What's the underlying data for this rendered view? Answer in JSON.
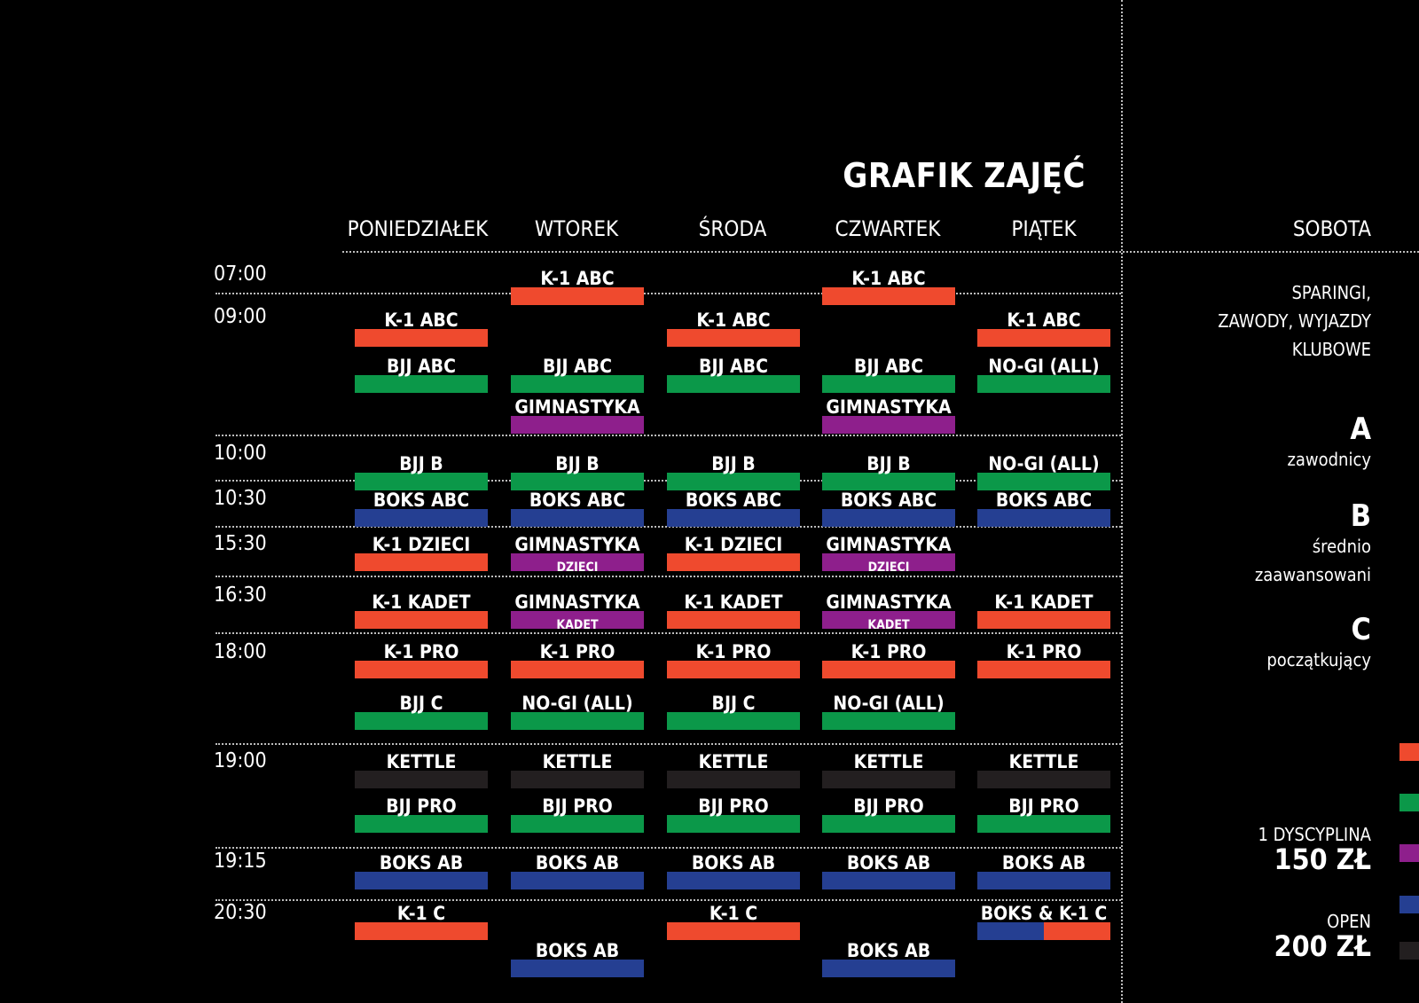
{
  "title": "GRAFIK ZAJĘĆ",
  "days": [
    "PONIEDZIAŁEK",
    "WTOREK",
    "ŚRODA",
    "CZWARTEK",
    "PIĄTEK"
  ],
  "saturday": {
    "label": "SOBOTA",
    "text_lines": [
      "SPARINGI,",
      "ZAWODY, WYJAZDY",
      "KLUBOWE"
    ]
  },
  "times": [
    "07:00",
    "09:00",
    "10:00",
    "10:30",
    "15:30",
    "16:30",
    "18:00",
    "19:00",
    "19:15",
    "20:30"
  ],
  "colors": {
    "k1": "#ef4a2e",
    "bjj": "#0b9849",
    "gym": "#8e1f8c",
    "boks": "#253f92",
    "kettle": "#231f20"
  },
  "schedule": [
    {
      "day": 1,
      "slot": 0,
      "label": "K-1 ABC",
      "color": "k1"
    },
    {
      "day": 3,
      "slot": 0,
      "label": "K-1 ABC",
      "color": "k1"
    },
    {
      "day": 0,
      "slot": 1,
      "label": "K-1 ABC",
      "color": "k1"
    },
    {
      "day": 2,
      "slot": 1,
      "label": "K-1 ABC",
      "color": "k1"
    },
    {
      "day": 4,
      "slot": 1,
      "label": "K-1 ABC",
      "color": "k1"
    },
    {
      "day": 0,
      "slot": 2,
      "label": "BJJ ABC",
      "color": "bjj"
    },
    {
      "day": 1,
      "slot": 2,
      "label": "BJJ ABC",
      "color": "bjj"
    },
    {
      "day": 2,
      "slot": 2,
      "label": "BJJ ABC",
      "color": "bjj"
    },
    {
      "day": 3,
      "slot": 2,
      "label": "BJJ ABC",
      "color": "bjj"
    },
    {
      "day": 4,
      "slot": 2,
      "label": "NO-GI (ALL)",
      "color": "bjj"
    },
    {
      "day": 1,
      "slot": 3,
      "label": "GIMNASTYKA",
      "color": "gym"
    },
    {
      "day": 3,
      "slot": 3,
      "label": "GIMNASTYKA",
      "color": "gym"
    },
    {
      "day": 0,
      "slot": 4,
      "label": "BJJ B",
      "color": "bjj"
    },
    {
      "day": 1,
      "slot": 4,
      "label": "BJJ B",
      "color": "bjj"
    },
    {
      "day": 2,
      "slot": 4,
      "label": "BJJ B",
      "color": "bjj"
    },
    {
      "day": 3,
      "slot": 4,
      "label": "BJJ B",
      "color": "bjj"
    },
    {
      "day": 4,
      "slot": 4,
      "label": "NO-GI (ALL)",
      "color": "bjj"
    },
    {
      "day": 0,
      "slot": 5,
      "label": "BOKS ABC",
      "color": "boks"
    },
    {
      "day": 1,
      "slot": 5,
      "label": "BOKS ABC",
      "color": "boks"
    },
    {
      "day": 2,
      "slot": 5,
      "label": "BOKS ABC",
      "color": "boks"
    },
    {
      "day": 3,
      "slot": 5,
      "label": "BOKS ABC",
      "color": "boks"
    },
    {
      "day": 4,
      "slot": 5,
      "label": "BOKS ABC",
      "color": "boks"
    },
    {
      "day": 0,
      "slot": 6,
      "label": "K-1 DZIECI",
      "color": "k1"
    },
    {
      "day": 1,
      "slot": 6,
      "label": "GIMNASTYKA",
      "sub": "DZIECI",
      "color": "gym"
    },
    {
      "day": 2,
      "slot": 6,
      "label": "K-1 DZIECI",
      "color": "k1"
    },
    {
      "day": 3,
      "slot": 6,
      "label": "GIMNASTYKA",
      "sub": "DZIECI",
      "color": "gym"
    },
    {
      "day": 0,
      "slot": 7,
      "label": "K-1 KADET",
      "color": "k1"
    },
    {
      "day": 1,
      "slot": 7,
      "label": "GIMNASTYKA",
      "sub": "KADET",
      "color": "gym"
    },
    {
      "day": 2,
      "slot": 7,
      "label": "K-1 KADET",
      "color": "k1"
    },
    {
      "day": 3,
      "slot": 7,
      "label": "GIMNASTYKA",
      "sub": "KADET",
      "color": "gym"
    },
    {
      "day": 4,
      "slot": 7,
      "label": "K-1 KADET",
      "color": "k1"
    },
    {
      "day": 0,
      "slot": 8,
      "label": "K-1 PRO",
      "color": "k1"
    },
    {
      "day": 1,
      "slot": 8,
      "label": "K-1 PRO",
      "color": "k1"
    },
    {
      "day": 2,
      "slot": 8,
      "label": "K-1 PRO",
      "color": "k1"
    },
    {
      "day": 3,
      "slot": 8,
      "label": "K-1 PRO",
      "color": "k1"
    },
    {
      "day": 4,
      "slot": 8,
      "label": "K-1 PRO",
      "color": "k1"
    },
    {
      "day": 0,
      "slot": 9,
      "label": "BJJ C",
      "color": "bjj"
    },
    {
      "day": 1,
      "slot": 9,
      "label": "NO-GI (ALL)",
      "color": "bjj"
    },
    {
      "day": 2,
      "slot": 9,
      "label": "BJJ C",
      "color": "bjj"
    },
    {
      "day": 3,
      "slot": 9,
      "label": "NO-GI (ALL)",
      "color": "bjj"
    },
    {
      "day": 0,
      "slot": 10,
      "label": "KETTLE",
      "color": "kettle"
    },
    {
      "day": 1,
      "slot": 10,
      "label": "KETTLE",
      "color": "kettle"
    },
    {
      "day": 2,
      "slot": 10,
      "label": "KETTLE",
      "color": "kettle"
    },
    {
      "day": 3,
      "slot": 10,
      "label": "KETTLE",
      "color": "kettle"
    },
    {
      "day": 4,
      "slot": 10,
      "label": "KETTLE",
      "color": "kettle"
    },
    {
      "day": 0,
      "slot": 11,
      "label": "BJJ PRO",
      "color": "bjj"
    },
    {
      "day": 1,
      "slot": 11,
      "label": "BJJ PRO",
      "color": "bjj"
    },
    {
      "day": 2,
      "slot": 11,
      "label": "BJJ PRO",
      "color": "bjj"
    },
    {
      "day": 3,
      "slot": 11,
      "label": "BJJ PRO",
      "color": "bjj"
    },
    {
      "day": 4,
      "slot": 11,
      "label": "BJJ PRO",
      "color": "bjj"
    },
    {
      "day": 0,
      "slot": 12,
      "label": "BOKS AB",
      "color": "boks"
    },
    {
      "day": 1,
      "slot": 12,
      "label": "BOKS AB",
      "color": "boks"
    },
    {
      "day": 2,
      "slot": 12,
      "label": "BOKS AB",
      "color": "boks"
    },
    {
      "day": 3,
      "slot": 12,
      "label": "BOKS AB",
      "color": "boks"
    },
    {
      "day": 4,
      "slot": 12,
      "label": "BOKS AB",
      "color": "boks"
    },
    {
      "day": 0,
      "slot": 13,
      "label": "K-1 C",
      "color": "k1"
    },
    {
      "day": 2,
      "slot": 13,
      "label": "K-1 C",
      "color": "k1"
    },
    {
      "day": 4,
      "slot": 13,
      "label": "BOKS & K-1 C",
      "color": "boks",
      "color2": "k1"
    },
    {
      "day": 1,
      "slot": 14,
      "label": "BOKS AB",
      "color": "boks"
    },
    {
      "day": 3,
      "slot": 14,
      "label": "BOKS AB",
      "color": "boks"
    }
  ],
  "levels": [
    {
      "letter": "A",
      "desc_lines": [
        "zawodnicy"
      ]
    },
    {
      "letter": "B",
      "desc_lines": [
        "średnio",
        "zaawansowani"
      ]
    },
    {
      "letter": "C",
      "desc_lines": [
        "początkujący"
      ]
    }
  ],
  "prices": [
    {
      "label": "1 DYSCYPLINA",
      "value": "150 ZŁ"
    },
    {
      "label": "OPEN",
      "value": "200 ZŁ"
    }
  ],
  "legend_swatches": [
    "k1",
    "bjj",
    "gym",
    "boks",
    "kettle"
  ]
}
